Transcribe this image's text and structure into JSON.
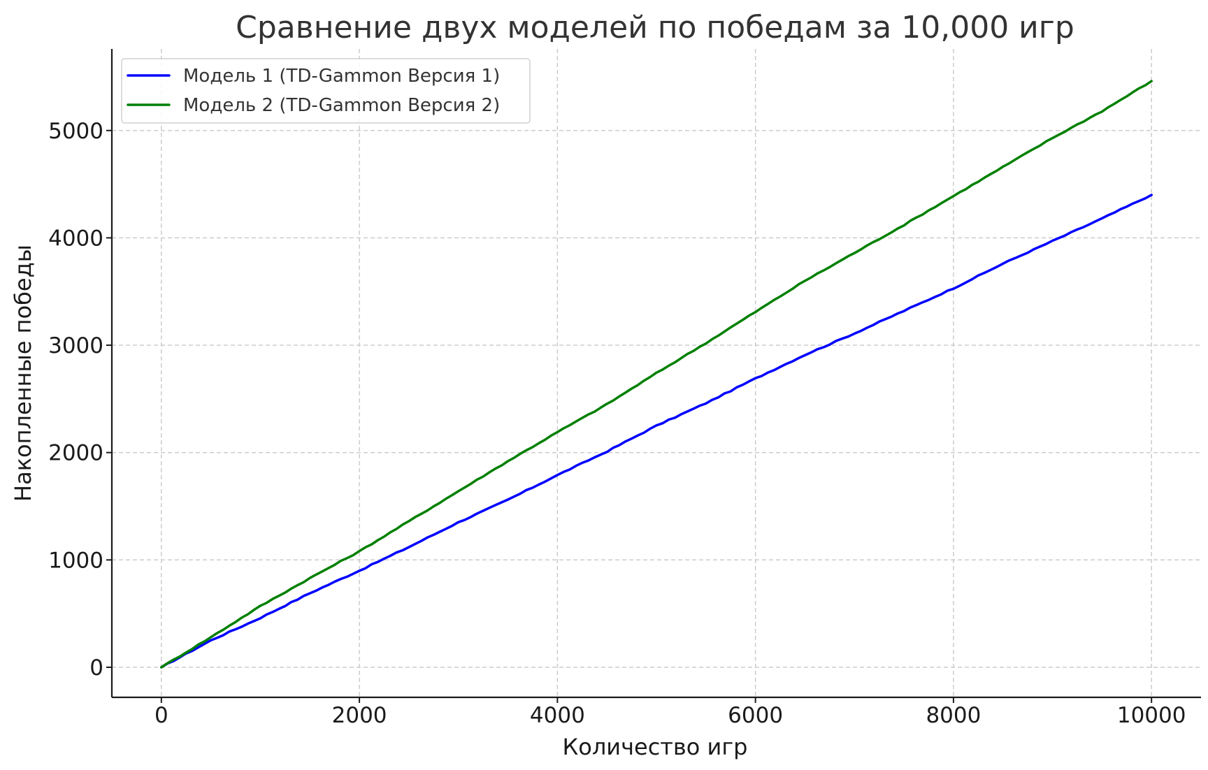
{
  "chart_data": {
    "type": "line",
    "title": "Сравнение двух моделей по победам за 10,000 игр",
    "xlabel": "Количество игр",
    "ylabel": "Накопленные победы",
    "xlim": [
      -500,
      10500
    ],
    "ylim": [
      -280,
      5760
    ],
    "x_ticks": [
      0,
      2000,
      4000,
      6000,
      8000,
      10000
    ],
    "y_ticks": [
      0,
      1000,
      2000,
      3000,
      4000,
      5000
    ],
    "x_tick_labels": [
      "0",
      "2000",
      "4000",
      "6000",
      "8000",
      "10000"
    ],
    "y_tick_labels": [
      "0",
      "1000",
      "2000",
      "3000",
      "4000",
      "5000"
    ],
    "grid": true,
    "legend_position": "top-left",
    "x": [
      0,
      500,
      1000,
      1500,
      2000,
      2500,
      3000,
      3500,
      4000,
      4500,
      5000,
      5500,
      6000,
      6500,
      7000,
      7500,
      8000,
      8500,
      9000,
      9500,
      10000
    ],
    "series": [
      {
        "name": "Модель 1 (TD-Gammon Версия 1)",
        "color": "#0000ff",
        "values": [
          0,
          250,
          460,
          690,
          900,
          1120,
          1350,
          1560,
          1790,
          2010,
          2250,
          2460,
          2690,
          2910,
          3110,
          3320,
          3530,
          3760,
          3970,
          4180,
          4400
        ]
      },
      {
        "name": "Модель 2 (TD-Gammon Версия 2)",
        "color": "#008000",
        "values": [
          0,
          280,
          570,
          830,
          1080,
          1360,
          1640,
          1920,
          2190,
          2450,
          2740,
          3020,
          3310,
          3600,
          3860,
          4120,
          4390,
          4660,
          4930,
          5180,
          5460
        ]
      }
    ]
  }
}
